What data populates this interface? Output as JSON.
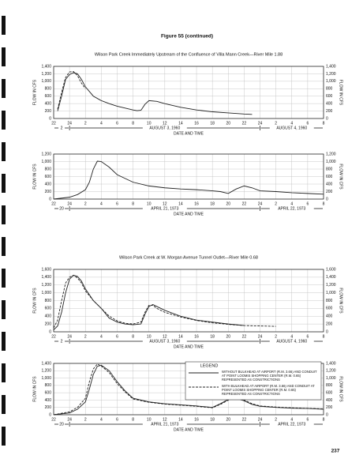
{
  "figure_title": "Figure 55 (continued)",
  "page_number": "237",
  "chart_data": [
    {
      "type": "line",
      "title": "Wilson Park Creek Immediately Upstream of the Confluence of Villa Mann Creek—River Mile 1.88",
      "x_label": "DATE AND TIME",
      "y_label": "FLOW IN CFS",
      "date_labels": [
        "2",
        "AUGUST 3, 1960",
        "AUGUST 4, 1960"
      ],
      "xlim": [
        0,
        34
      ],
      "xticks": [
        {
          "value": 0,
          "label": "22"
        },
        {
          "value": 2,
          "label": "24"
        },
        {
          "value": 4,
          "label": "2"
        },
        {
          "value": 6,
          "label": "4"
        },
        {
          "value": 8,
          "label": "6"
        },
        {
          "value": 10,
          "label": "8"
        },
        {
          "value": 12,
          "label": "10"
        },
        {
          "value": 14,
          "label": "12"
        },
        {
          "value": 16,
          "label": "14"
        },
        {
          "value": 18,
          "label": "16"
        },
        {
          "value": 20,
          "label": "18"
        },
        {
          "value": 22,
          "label": "20"
        },
        {
          "value": 24,
          "label": "22"
        },
        {
          "value": 26,
          "label": "24"
        },
        {
          "value": 28,
          "label": "2"
        },
        {
          "value": 30,
          "label": "4"
        },
        {
          "value": 32,
          "label": "6"
        },
        {
          "value": 34,
          "label": "8"
        }
      ],
      "ylim": [
        0,
        1400
      ],
      "yticks": [
        0,
        200,
        400,
        600,
        800,
        {
          "value": 1000,
          "label": "1,000"
        },
        {
          "value": 1200,
          "label": "1,200"
        },
        {
          "value": 1400,
          "label": "1,400"
        }
      ],
      "grid": true,
      "series": [
        {
          "color": "#222222",
          "line_style": "solid",
          "x": [
            0.5,
            1,
            1.5,
            2,
            2.5,
            3,
            3.5,
            4,
            5,
            6,
            7,
            8,
            9,
            10,
            10.5,
            11,
            11.5,
            12,
            13,
            14,
            16,
            18,
            20,
            22,
            24,
            25
          ],
          "values": [
            200,
            600,
            1050,
            1180,
            1230,
            1200,
            1050,
            850,
            600,
            480,
            400,
            330,
            280,
            230,
            210,
            220,
            380,
            480,
            460,
            400,
            300,
            230,
            180,
            150,
            120,
            110
          ]
        },
        {
          "color": "#222222",
          "line_style": "dashed",
          "x": [
            0.5,
            1,
            1.5,
            2,
            2.5,
            3,
            3.5,
            4
          ],
          "values": [
            250,
            700,
            1100,
            1250,
            1260,
            1150,
            950,
            800
          ]
        }
      ]
    },
    {
      "type": "line",
      "x_label": "DATE AND TIME",
      "y_label": "FLOW IN CFS",
      "date_labels": [
        "20",
        "APRIL 21, 1973",
        "APRIL 22, 1973"
      ],
      "xlim": [
        0,
        34
      ],
      "xticks": [
        {
          "value": 0,
          "label": "22"
        },
        {
          "value": 2,
          "label": "24"
        },
        {
          "value": 4,
          "label": "2"
        },
        {
          "value": 6,
          "label": "4"
        },
        {
          "value": 8,
          "label": "6"
        },
        {
          "value": 10,
          "label": "8"
        },
        {
          "value": 12,
          "label": "10"
        },
        {
          "value": 14,
          "label": "12"
        },
        {
          "value": 16,
          "label": "14"
        },
        {
          "value": 18,
          "label": "16"
        },
        {
          "value": 20,
          "label": "18"
        },
        {
          "value": 22,
          "label": "20"
        },
        {
          "value": 24,
          "label": "22"
        },
        {
          "value": 26,
          "label": "24"
        },
        {
          "value": 28,
          "label": "2"
        },
        {
          "value": 30,
          "label": "4"
        },
        {
          "value": 32,
          "label": "6"
        },
        {
          "value": 34,
          "label": "8"
        }
      ],
      "ylim": [
        0,
        1200
      ],
      "yticks": [
        0,
        200,
        400,
        600,
        800,
        {
          "value": 1000,
          "label": "1,000"
        },
        {
          "value": 1200,
          "label": "1,200"
        }
      ],
      "grid": true,
      "series": [
        {
          "color": "#222222",
          "line_style": "solid",
          "x": [
            0,
            2,
            3,
            4,
            4.5,
            5,
            5.5,
            6,
            7,
            8,
            9,
            10,
            12,
            14,
            16,
            18,
            20,
            21,
            22,
            23,
            24,
            25,
            26,
            28,
            30,
            32,
            34
          ],
          "values": [
            0,
            50,
            120,
            250,
            450,
            800,
            1010,
            1000,
            850,
            650,
            550,
            450,
            350,
            300,
            270,
            250,
            220,
            200,
            150,
            270,
            350,
            300,
            220,
            200,
            170,
            150,
            130
          ]
        }
      ]
    },
    {
      "type": "line",
      "title": "Wilson Park Creek at W. Morgan Avenue Tunnel Outlet—River Mile 0.68",
      "x_label": "DATE AND TIME",
      "y_label": "FLOW IN CFS",
      "date_labels": [
        "2",
        "AUGUST 3, 1960",
        "AUGUST 4, 1960"
      ],
      "xlim": [
        0,
        34
      ],
      "xticks": [
        {
          "value": 0,
          "label": "22"
        },
        {
          "value": 2,
          "label": "24"
        },
        {
          "value": 4,
          "label": "2"
        },
        {
          "value": 6,
          "label": "4"
        },
        {
          "value": 8,
          "label": "6"
        },
        {
          "value": 10,
          "label": "8"
        },
        {
          "value": 12,
          "label": "10"
        },
        {
          "value": 14,
          "label": "12"
        },
        {
          "value": 16,
          "label": "14"
        },
        {
          "value": 18,
          "label": "16"
        },
        {
          "value": 20,
          "label": "18"
        },
        {
          "value": 22,
          "label": "20"
        },
        {
          "value": 24,
          "label": "22"
        },
        {
          "value": 26,
          "label": "24"
        },
        {
          "value": 28,
          "label": "2"
        },
        {
          "value": 30,
          "label": "4"
        },
        {
          "value": 32,
          "label": "6"
        },
        {
          "value": 34,
          "label": "8"
        }
      ],
      "ylim": [
        0,
        1600
      ],
      "yticks": [
        0,
        200,
        400,
        600,
        800,
        {
          "value": 1000,
          "label": "1,000"
        },
        {
          "value": 1200,
          "label": "1,200"
        },
        {
          "value": 1400,
          "label": "1,400"
        },
        {
          "value": 1600,
          "label": "1,600"
        }
      ],
      "grid": true,
      "series": [
        {
          "color": "#222222",
          "line_style": "solid",
          "x": [
            0,
            0.5,
            1,
            1.5,
            2,
            2.5,
            3,
            3.5,
            4,
            5,
            6,
            7,
            8,
            9,
            10,
            11,
            11.5,
            12,
            12.5,
            13,
            14,
            16,
            18,
            20,
            22,
            24
          ],
          "values": [
            50,
            150,
            500,
            1000,
            1350,
            1450,
            1420,
            1300,
            1100,
            800,
            600,
            350,
            250,
            200,
            180,
            200,
            450,
            650,
            700,
            650,
            550,
            400,
            300,
            250,
            200,
            160
          ]
        },
        {
          "color": "#222222",
          "line_style": "dashed",
          "x": [
            0,
            0.5,
            1,
            1.5,
            2,
            2.5,
            3,
            3.5,
            4,
            5,
            6,
            7,
            8,
            9,
            10,
            11,
            11.5,
            12,
            12.5,
            13,
            14,
            16,
            18,
            20,
            22,
            24,
            26,
            28
          ],
          "values": [
            100,
            300,
            800,
            1250,
            1400,
            1450,
            1380,
            1250,
            1050,
            800,
            600,
            400,
            280,
            220,
            200,
            250,
            500,
            680,
            680,
            600,
            500,
            380,
            290,
            230,
            190,
            160,
            150,
            140
          ]
        }
      ]
    },
    {
      "type": "line",
      "x_label": "DATE AND TIME",
      "y_label": "FLOW IN CFS",
      "date_labels": [
        "20",
        "APRIL 21, 1973",
        "APRIL 22, 1973"
      ],
      "legend_title": "LEGEND",
      "xlim": [
        0,
        34
      ],
      "xticks": [
        {
          "value": 0,
          "label": "22"
        },
        {
          "value": 2,
          "label": "24"
        },
        {
          "value": 4,
          "label": "2"
        },
        {
          "value": 6,
          "label": "4"
        },
        {
          "value": 8,
          "label": "6"
        },
        {
          "value": 10,
          "label": "8"
        },
        {
          "value": 12,
          "label": "10"
        },
        {
          "value": 14,
          "label": "12"
        },
        {
          "value": 16,
          "label": "14"
        },
        {
          "value": 18,
          "label": "16"
        },
        {
          "value": 20,
          "label": "18"
        },
        {
          "value": 22,
          "label": "20"
        },
        {
          "value": 24,
          "label": "22"
        },
        {
          "value": 26,
          "label": "24"
        },
        {
          "value": 28,
          "label": "2"
        },
        {
          "value": 30,
          "label": "4"
        },
        {
          "value": 32,
          "label": "6"
        },
        {
          "value": 34,
          "label": "8"
        }
      ],
      "ylim": [
        0,
        1400
      ],
      "yticks": [
        0,
        200,
        400,
        600,
        800,
        {
          "value": 1000,
          "label": "1,000"
        },
        {
          "value": 1200,
          "label": "1,200"
        },
        {
          "value": 1400,
          "label": "1,400"
        }
      ],
      "grid": true,
      "series": [
        {
          "name": "WITHOUT BULKHEAD AT AIRPORT (R.M. 3.66) AND CONDUIT AT POINT LOOMIS SHOPPING CENTER (R.M. 0.65) REPRESENTED AS CONSTRICTIONS",
          "color": "#222222",
          "line_style": "solid",
          "x": [
            0,
            2,
            3,
            4,
            4.5,
            5,
            5.5,
            6,
            7,
            8,
            9,
            10,
            12,
            14,
            16,
            18,
            20,
            21,
            22,
            23,
            24,
            25,
            26,
            28,
            30,
            32,
            34
          ],
          "values": [
            0,
            50,
            150,
            350,
            700,
            1100,
            1320,
            1350,
            1200,
            900,
            650,
            450,
            350,
            300,
            270,
            240,
            200,
            300,
            420,
            450,
            380,
            280,
            230,
            200,
            180,
            170,
            150
          ]
        },
        {
          "name": "WITH BULKHEAD AT AIRPORT (R.M. 3.66) AND CONDUIT AT POINT LOOMIS SHOPPING CENTER (R.M. 0.65) REPRESENTED AS CONSTRICTIONS",
          "color": "#222222",
          "line_style": "dashed",
          "x": [
            0,
            2,
            3,
            4,
            4.5,
            5,
            5.5,
            6,
            7,
            8,
            9,
            10,
            12,
            14,
            16,
            18,
            20,
            21,
            22,
            23,
            24,
            25,
            26,
            28,
            30,
            32,
            34
          ],
          "values": [
            0,
            80,
            200,
            450,
            900,
            1250,
            1380,
            1330,
            1150,
            850,
            620,
            430,
            340,
            290,
            260,
            230,
            190,
            280,
            400,
            470,
            400,
            300,
            240,
            210,
            190,
            175,
            160
          ]
        }
      ]
    }
  ]
}
